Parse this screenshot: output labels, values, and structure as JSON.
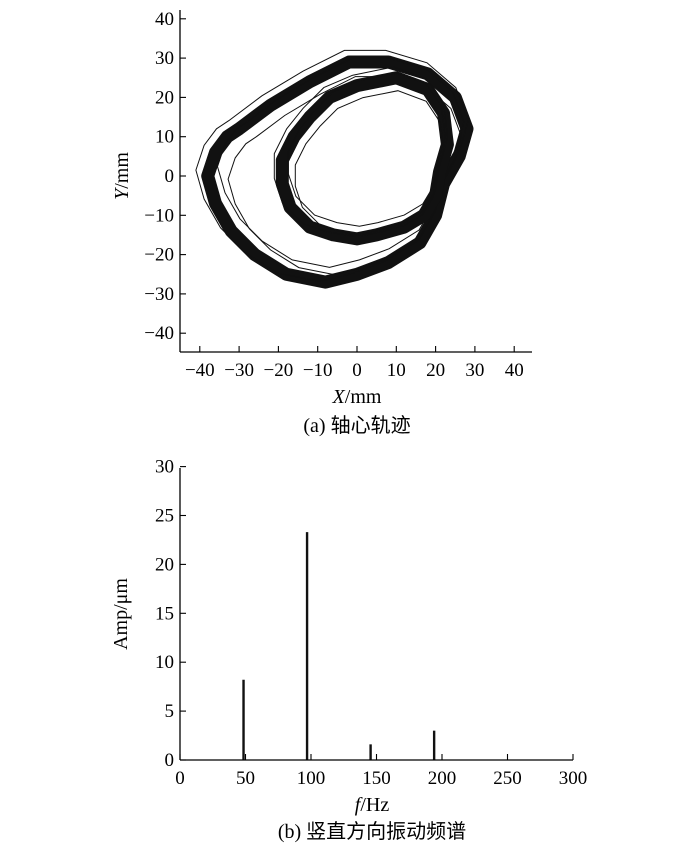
{
  "chart_data": [
    {
      "type": "line",
      "subtype": "orbit",
      "caption": "(a) 轴心轨迹",
      "xlabel_var": "X",
      "xlabel_unit": "/mm",
      "ylabel_var": "Y",
      "ylabel_unit": "/mm",
      "xlim": [
        -40,
        40
      ],
      "ylim": [
        -45,
        45
      ],
      "xticks": [
        -40,
        -30,
        -20,
        -10,
        0,
        10,
        20,
        30,
        40
      ],
      "yticks": [
        -40,
        -30,
        -20,
        -10,
        0,
        10,
        20,
        30,
        40
      ],
      "xtick_labels": [
        "−40",
        "−30",
        "−20",
        "−10",
        "0",
        "10",
        "20",
        "30",
        "40"
      ],
      "ytick_labels": [
        "−40",
        "−30",
        "−20",
        "−10",
        "0",
        "10",
        "20",
        "30",
        "40"
      ],
      "line_color": "#111111",
      "series": [
        {
          "loop": "outer",
          "points": [
            [
              -30,
              12
            ],
            [
              -22,
              18
            ],
            [
              -12,
              24
            ],
            [
              -2,
              29
            ],
            [
              8,
              29
            ],
            [
              18,
              26
            ],
            [
              25,
              20
            ],
            [
              28,
              12
            ],
            [
              26,
              5
            ],
            [
              22,
              -2
            ],
            [
              20,
              -10
            ],
            [
              16,
              -17
            ],
            [
              8,
              -22
            ],
            [
              0,
              -25
            ],
            [
              -8,
              -27
            ],
            [
              -18,
              -25
            ],
            [
              -26,
              -20
            ],
            [
              -32,
              -14
            ],
            [
              -36,
              -7
            ],
            [
              -38,
              0
            ],
            [
              -36,
              6
            ],
            [
              -33,
              10
            ],
            [
              -30,
              12
            ]
          ]
        },
        {
          "loop": "inner",
          "points": [
            [
              0,
              23
            ],
            [
              10,
              25
            ],
            [
              18,
              22
            ],
            [
              22,
              16
            ],
            [
              23,
              8
            ],
            [
              21,
              1
            ],
            [
              20,
              -5
            ],
            [
              17,
              -10
            ],
            [
              12,
              -13
            ],
            [
              5,
              -15
            ],
            [
              0,
              -16
            ],
            [
              -6,
              -15
            ],
            [
              -12,
              -13
            ],
            [
              -17,
              -8
            ],
            [
              -19,
              -2
            ],
            [
              -19,
              4
            ],
            [
              -16,
              10
            ],
            [
              -12,
              15
            ],
            [
              -7,
              20
            ],
            [
              0,
              23
            ]
          ]
        }
      ]
    },
    {
      "type": "bar",
      "subtype": "spectrum",
      "caption": "(b) 竖直方向振动频谱",
      "xlabel_var": "f",
      "xlabel_unit": "/Hz",
      "ylabel": "Amp/μm",
      "xlim": [
        0,
        300
      ],
      "ylim": [
        0,
        30
      ],
      "xticks": [
        0,
        50,
        100,
        150,
        200,
        250,
        300
      ],
      "yticks": [
        0,
        5,
        10,
        15,
        20,
        25,
        30
      ],
      "x": [
        48.5,
        97,
        145.5,
        194
      ],
      "values": [
        8.2,
        23.3,
        1.6,
        3.0
      ],
      "line_color": "#111111"
    }
  ]
}
